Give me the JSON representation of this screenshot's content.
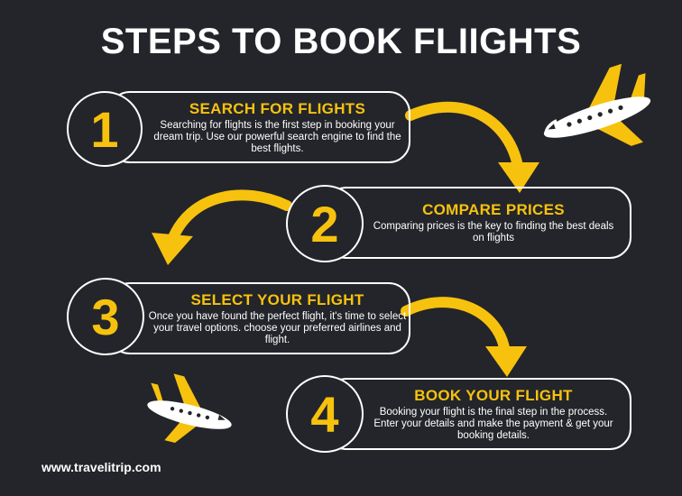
{
  "title": "STEPS TO BOOK FLIIGHTS",
  "steps": [
    {
      "number": "1",
      "title": "SEARCH FOR FLIGHTS",
      "desc": "Searching for flights is the first step in booking your dream trip. Use our powerful search engine to find the best flights."
    },
    {
      "number": "2",
      "title": "COMPARE PRICES",
      "desc": "Comparing prices is the key to finding the best deals on flights"
    },
    {
      "number": "3",
      "title": "SELECT YOUR FLIGHT",
      "desc": "Once you have found the perfect flight, it's time to select your travel options. choose your preferred airlines and flight."
    },
    {
      "number": "4",
      "title": "BOOK YOUR FLIGHT",
      "desc": "Booking your flight is the final step in the process. Enter your details and make the payment & get your booking details."
    }
  ],
  "footer": {
    "website": "www.travelitrip.com"
  },
  "colors": {
    "accent": "#f7c20e",
    "background": "#23252a",
    "text": "#ffffff"
  },
  "icons": [
    "airplane-icon",
    "curved-arrow-icon"
  ]
}
